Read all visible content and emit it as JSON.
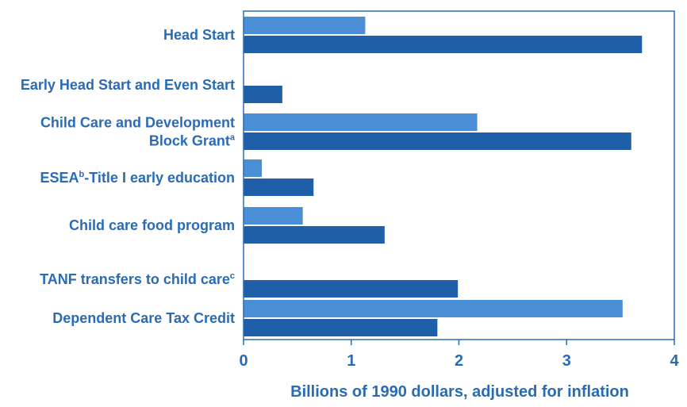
{
  "chart_data": {
    "type": "bar",
    "orientation": "horizontal",
    "categories": [
      {
        "lines": [
          {
            "text": "Head Start",
            "sup": ""
          }
        ]
      },
      {
        "lines": [
          {
            "text": "Early Head Start and Even Start",
            "sup": ""
          }
        ]
      },
      {
        "lines": [
          {
            "text": "Child Care and Development",
            "sup": ""
          },
          {
            "text": "Block Grant",
            "sup": "a"
          }
        ]
      },
      {
        "lines": [
          {
            "text": "ESEA",
            "sup": "b",
            "rest": "-Title I early education"
          }
        ]
      },
      {
        "lines": [
          {
            "text": "Child care food program",
            "sup": ""
          }
        ]
      },
      {
        "lines": [
          {
            "text": "TANF transfers to child care",
            "sup": "c"
          }
        ]
      },
      {
        "lines": [
          {
            "text": "Dependent Care Tax Credit",
            "sup": ""
          }
        ]
      }
    ],
    "series": [
      {
        "values": [
          1.13,
          0,
          2.17,
          0.17,
          0.55,
          0,
          3.52
        ],
        "color": "#4a8fd6"
      },
      {
        "values": [
          3.7,
          0.36,
          3.6,
          0.65,
          1.31,
          1.99,
          1.8
        ],
        "color": "#1f5ea8"
      }
    ],
    "xlim": [
      0,
      4
    ],
    "xticks": [
      "0",
      "1",
      "2",
      "3",
      "4"
    ],
    "xlabel": "Billions of 1990 dollars, adjusted for inflation",
    "grid": false,
    "text_color": "#2a6bb5",
    "axis_color": "#2a6bb5"
  }
}
